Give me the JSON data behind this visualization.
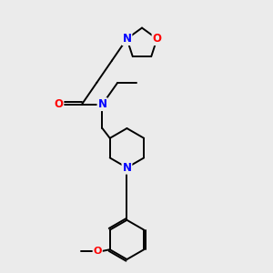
{
  "background_color": "#ebebeb",
  "bond_color": "#000000",
  "atom_colors": {
    "N": "#0000ff",
    "O": "#ff0000",
    "C": "#000000"
  },
  "line_width": 1.4,
  "font_size": 8.5,
  "fig_size": [
    3.0,
    3.0
  ],
  "dpi": 100
}
